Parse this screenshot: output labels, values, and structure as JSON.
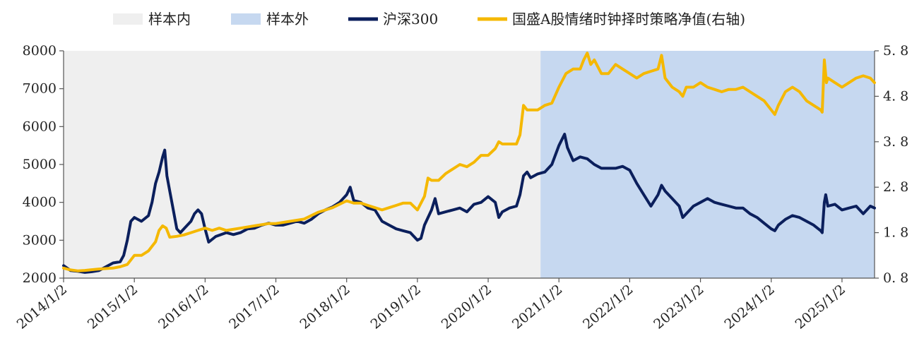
{
  "chart_data": {
    "type": "line",
    "title": "",
    "xlabel": "",
    "ylabel": "",
    "x_ticks": [
      "2014/1/2",
      "2015/1/2",
      "2016/1/2",
      "2017/1/2",
      "2018/1/2",
      "2019/1/2",
      "2020/1/2",
      "2021/1/2",
      "2022/1/2",
      "2023/1/2",
      "2024/1/2",
      "2025/1/2"
    ],
    "x_range": [
      2014.0,
      2025.46
    ],
    "y_left": {
      "min": 2000,
      "max": 8000,
      "ticks": [
        "2000",
        "3000",
        "4000",
        "5000",
        "6000",
        "7000",
        "8000"
      ]
    },
    "y_right": {
      "min": 0.8,
      "max": 5.8,
      "ticks": [
        "0.8",
        "1.8",
        "2.8",
        "3.8",
        "4.8",
        "5.8"
      ],
      "tick_labels": [
        "0. 8",
        "1. 8",
        "2. 8",
        "3. 8",
        "4. 8",
        "5. 8"
      ]
    },
    "regions": [
      {
        "name": "样本内",
        "from": 2014.0,
        "to": 2020.74,
        "color": "#efefef"
      },
      {
        "name": "样本外",
        "from": 2020.74,
        "to": 2025.46,
        "color": "#c6d8f0"
      }
    ],
    "series": [
      {
        "name": "沪深300",
        "axis": "left",
        "color": "#0b1f5c",
        "points": [
          [
            2014.0,
            2330
          ],
          [
            2014.1,
            2200
          ],
          [
            2014.2,
            2180
          ],
          [
            2014.3,
            2150
          ],
          [
            2014.4,
            2170
          ],
          [
            2014.5,
            2200
          ],
          [
            2014.6,
            2300
          ],
          [
            2014.7,
            2400
          ],
          [
            2014.8,
            2430
          ],
          [
            2014.85,
            2600
          ],
          [
            2014.9,
            3000
          ],
          [
            2014.95,
            3500
          ],
          [
            2015.0,
            3600
          ],
          [
            2015.1,
            3500
          ],
          [
            2015.2,
            3650
          ],
          [
            2015.25,
            4000
          ],
          [
            2015.3,
            4500
          ],
          [
            2015.35,
            4800
          ],
          [
            2015.4,
            5200
          ],
          [
            2015.43,
            5380
          ],
          [
            2015.46,
            4700
          ],
          [
            2015.5,
            4300
          ],
          [
            2015.55,
            3800
          ],
          [
            2015.6,
            3300
          ],
          [
            2015.65,
            3200
          ],
          [
            2015.7,
            3300
          ],
          [
            2015.8,
            3500
          ],
          [
            2015.85,
            3700
          ],
          [
            2015.9,
            3800
          ],
          [
            2015.95,
            3700
          ],
          [
            2016.0,
            3300
          ],
          [
            2016.05,
            2950
          ],
          [
            2016.15,
            3100
          ],
          [
            2016.3,
            3200
          ],
          [
            2016.4,
            3150
          ],
          [
            2016.5,
            3200
          ],
          [
            2016.6,
            3300
          ],
          [
            2016.7,
            3320
          ],
          [
            2016.8,
            3400
          ],
          [
            2016.9,
            3450
          ],
          [
            2017.0,
            3400
          ],
          [
            2017.1,
            3400
          ],
          [
            2017.2,
            3450
          ],
          [
            2017.3,
            3500
          ],
          [
            2017.4,
            3450
          ],
          [
            2017.5,
            3550
          ],
          [
            2017.6,
            3700
          ],
          [
            2017.7,
            3800
          ],
          [
            2017.8,
            3880
          ],
          [
            2017.9,
            4000
          ],
          [
            2018.0,
            4200
          ],
          [
            2018.05,
            4400
          ],
          [
            2018.1,
            4050
          ],
          [
            2018.2,
            4000
          ],
          [
            2018.3,
            3850
          ],
          [
            2018.4,
            3800
          ],
          [
            2018.5,
            3500
          ],
          [
            2018.6,
            3400
          ],
          [
            2018.7,
            3300
          ],
          [
            2018.8,
            3250
          ],
          [
            2018.9,
            3200
          ],
          [
            2019.0,
            3000
          ],
          [
            2019.05,
            3050
          ],
          [
            2019.1,
            3400
          ],
          [
            2019.2,
            3800
          ],
          [
            2019.25,
            4100
          ],
          [
            2019.3,
            3700
          ],
          [
            2019.4,
            3750
          ],
          [
            2019.5,
            3800
          ],
          [
            2019.6,
            3850
          ],
          [
            2019.7,
            3750
          ],
          [
            2019.8,
            3950
          ],
          [
            2019.9,
            4000
          ],
          [
            2020.0,
            4150
          ],
          [
            2020.1,
            4000
          ],
          [
            2020.15,
            3600
          ],
          [
            2020.2,
            3750
          ],
          [
            2020.3,
            3850
          ],
          [
            2020.4,
            3900
          ],
          [
            2020.45,
            4200
          ],
          [
            2020.5,
            4700
          ],
          [
            2020.55,
            4800
          ],
          [
            2020.6,
            4650
          ],
          [
            2020.7,
            4750
          ],
          [
            2020.8,
            4800
          ],
          [
            2020.9,
            5000
          ],
          [
            2021.0,
            5500
          ],
          [
            2021.08,
            5800
          ],
          [
            2021.12,
            5450
          ],
          [
            2021.2,
            5100
          ],
          [
            2021.3,
            5200
          ],
          [
            2021.4,
            5150
          ],
          [
            2021.5,
            5000
          ],
          [
            2021.6,
            4900
          ],
          [
            2021.7,
            4900
          ],
          [
            2021.8,
            4900
          ],
          [
            2021.9,
            4950
          ],
          [
            2022.0,
            4850
          ],
          [
            2022.1,
            4500
          ],
          [
            2022.2,
            4200
          ],
          [
            2022.3,
            3900
          ],
          [
            2022.4,
            4200
          ],
          [
            2022.45,
            4450
          ],
          [
            2022.5,
            4300
          ],
          [
            2022.6,
            4100
          ],
          [
            2022.7,
            3900
          ],
          [
            2022.75,
            3600
          ],
          [
            2022.8,
            3700
          ],
          [
            2022.9,
            3900
          ],
          [
            2023.0,
            4000
          ],
          [
            2023.1,
            4100
          ],
          [
            2023.2,
            4000
          ],
          [
            2023.3,
            3950
          ],
          [
            2023.4,
            3900
          ],
          [
            2023.5,
            3850
          ],
          [
            2023.6,
            3850
          ],
          [
            2023.7,
            3700
          ],
          [
            2023.8,
            3600
          ],
          [
            2023.9,
            3450
          ],
          [
            2024.0,
            3300
          ],
          [
            2024.05,
            3250
          ],
          [
            2024.1,
            3400
          ],
          [
            2024.2,
            3550
          ],
          [
            2024.3,
            3650
          ],
          [
            2024.4,
            3600
          ],
          [
            2024.5,
            3500
          ],
          [
            2024.6,
            3400
          ],
          [
            2024.7,
            3250
          ],
          [
            2024.72,
            3200
          ],
          [
            2024.75,
            4000
          ],
          [
            2024.77,
            4200
          ],
          [
            2024.8,
            3900
          ],
          [
            2024.9,
            3950
          ],
          [
            2025.0,
            3800
          ],
          [
            2025.1,
            3850
          ],
          [
            2025.2,
            3900
          ],
          [
            2025.3,
            3700
          ],
          [
            2025.4,
            3900
          ],
          [
            2025.46,
            3850
          ]
        ]
      },
      {
        "name": "国盛A股情绪时钟择时策略净值(右轴)",
        "axis": "right",
        "color": "#f5b800",
        "points": [
          [
            2014.0,
            1.02
          ],
          [
            2014.1,
            0.98
          ],
          [
            2014.2,
            0.96
          ],
          [
            2014.3,
            0.97
          ],
          [
            2014.5,
            1.0
          ],
          [
            2014.7,
            1.02
          ],
          [
            2014.8,
            1.05
          ],
          [
            2014.9,
            1.1
          ],
          [
            2015.0,
            1.3
          ],
          [
            2015.1,
            1.3
          ],
          [
            2015.2,
            1.4
          ],
          [
            2015.3,
            1.6
          ],
          [
            2015.35,
            1.85
          ],
          [
            2015.4,
            1.95
          ],
          [
            2015.45,
            1.9
          ],
          [
            2015.5,
            1.7
          ],
          [
            2015.6,
            1.72
          ],
          [
            2015.7,
            1.75
          ],
          [
            2015.8,
            1.8
          ],
          [
            2015.9,
            1.85
          ],
          [
            2016.0,
            1.9
          ],
          [
            2016.1,
            1.85
          ],
          [
            2016.2,
            1.9
          ],
          [
            2016.3,
            1.85
          ],
          [
            2016.5,
            1.9
          ],
          [
            2016.7,
            1.95
          ],
          [
            2016.9,
            2.0
          ],
          [
            2017.0,
            2.0
          ],
          [
            2017.2,
            2.05
          ],
          [
            2017.4,
            2.1
          ],
          [
            2017.6,
            2.25
          ],
          [
            2017.8,
            2.35
          ],
          [
            2018.0,
            2.5
          ],
          [
            2018.1,
            2.45
          ],
          [
            2018.2,
            2.45
          ],
          [
            2018.3,
            2.4
          ],
          [
            2018.4,
            2.35
          ],
          [
            2018.5,
            2.3
          ],
          [
            2018.6,
            2.35
          ],
          [
            2018.7,
            2.4
          ],
          [
            2018.8,
            2.45
          ],
          [
            2018.9,
            2.45
          ],
          [
            2019.0,
            2.3
          ],
          [
            2019.1,
            2.6
          ],
          [
            2019.15,
            3.0
          ],
          [
            2019.2,
            2.95
          ],
          [
            2019.3,
            2.95
          ],
          [
            2019.4,
            3.1
          ],
          [
            2019.5,
            3.2
          ],
          [
            2019.6,
            3.3
          ],
          [
            2019.7,
            3.25
          ],
          [
            2019.8,
            3.35
          ],
          [
            2019.9,
            3.5
          ],
          [
            2020.0,
            3.5
          ],
          [
            2020.1,
            3.65
          ],
          [
            2020.15,
            3.8
          ],
          [
            2020.2,
            3.75
          ],
          [
            2020.3,
            3.75
          ],
          [
            2020.4,
            3.75
          ],
          [
            2020.45,
            3.95
          ],
          [
            2020.5,
            4.6
          ],
          [
            2020.55,
            4.5
          ],
          [
            2020.6,
            4.5
          ],
          [
            2020.7,
            4.5
          ],
          [
            2020.8,
            4.6
          ],
          [
            2020.9,
            4.65
          ],
          [
            2021.0,
            5.0
          ],
          [
            2021.1,
            5.3
          ],
          [
            2021.2,
            5.4
          ],
          [
            2021.3,
            5.4
          ],
          [
            2021.35,
            5.6
          ],
          [
            2021.4,
            5.75
          ],
          [
            2021.45,
            5.5
          ],
          [
            2021.5,
            5.6
          ],
          [
            2021.6,
            5.3
          ],
          [
            2021.7,
            5.3
          ],
          [
            2021.8,
            5.5
          ],
          [
            2021.9,
            5.4
          ],
          [
            2022.0,
            5.3
          ],
          [
            2022.1,
            5.2
          ],
          [
            2022.2,
            5.3
          ],
          [
            2022.3,
            5.35
          ],
          [
            2022.4,
            5.4
          ],
          [
            2022.45,
            5.7
          ],
          [
            2022.5,
            5.2
          ],
          [
            2022.6,
            5.0
          ],
          [
            2022.7,
            4.9
          ],
          [
            2022.75,
            4.8
          ],
          [
            2022.8,
            5.0
          ],
          [
            2022.9,
            5.0
          ],
          [
            2023.0,
            5.1
          ],
          [
            2023.1,
            5.0
          ],
          [
            2023.2,
            4.95
          ],
          [
            2023.3,
            4.9
          ],
          [
            2023.4,
            4.95
          ],
          [
            2023.5,
            4.95
          ],
          [
            2023.6,
            5.0
          ],
          [
            2023.7,
            4.9
          ],
          [
            2023.8,
            4.8
          ],
          [
            2023.9,
            4.7
          ],
          [
            2024.0,
            4.5
          ],
          [
            2024.05,
            4.4
          ],
          [
            2024.1,
            4.6
          ],
          [
            2024.2,
            4.9
          ],
          [
            2024.3,
            5.0
          ],
          [
            2024.4,
            4.9
          ],
          [
            2024.5,
            4.7
          ],
          [
            2024.6,
            4.6
          ],
          [
            2024.7,
            4.5
          ],
          [
            2024.72,
            4.45
          ],
          [
            2024.75,
            5.6
          ],
          [
            2024.78,
            5.1
          ],
          [
            2024.8,
            5.2
          ],
          [
            2024.9,
            5.1
          ],
          [
            2025.0,
            5.0
          ],
          [
            2025.1,
            5.1
          ],
          [
            2025.2,
            5.2
          ],
          [
            2025.3,
            5.25
          ],
          [
            2025.4,
            5.2
          ],
          [
            2025.46,
            5.1
          ]
        ]
      }
    ]
  }
}
